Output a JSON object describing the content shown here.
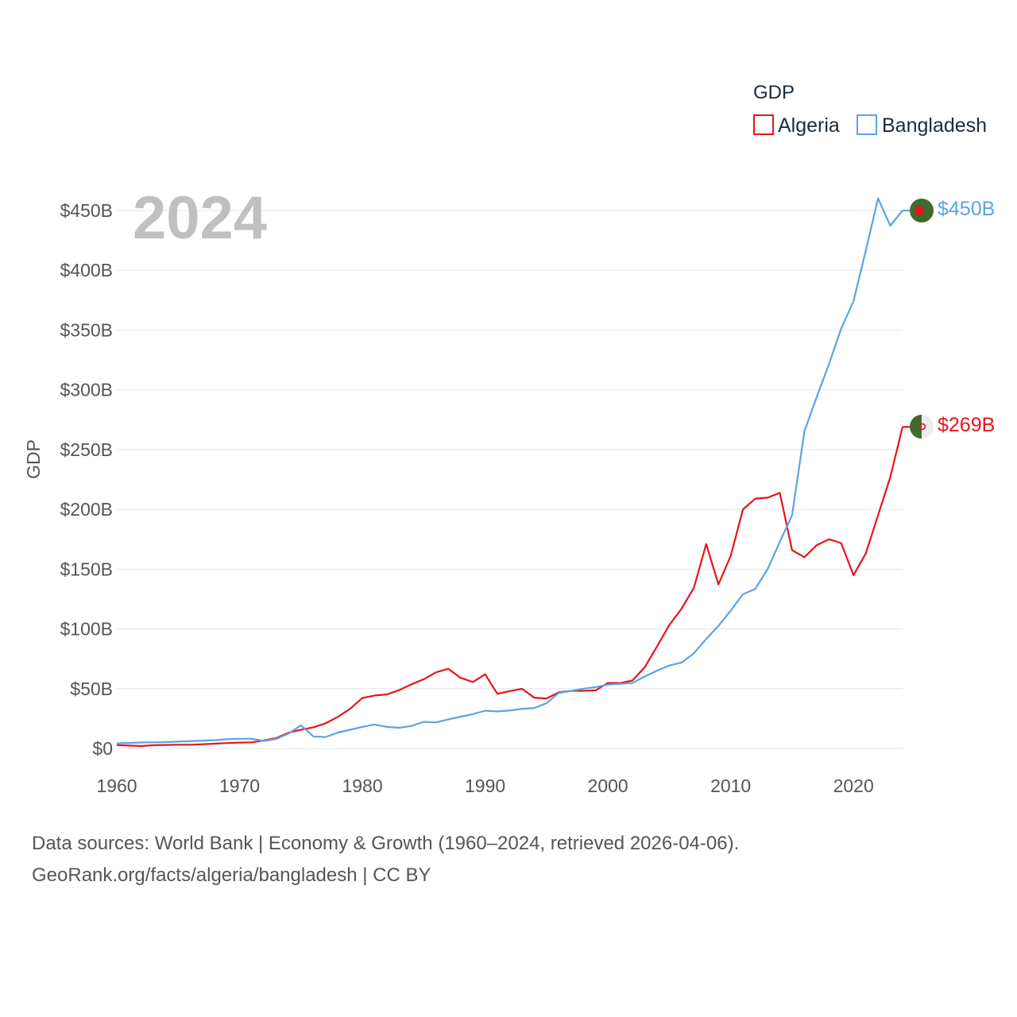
{
  "chart_data": {
    "type": "line",
    "year_label": "2024",
    "ylabel": "GDP",
    "ylim": [
      0,
      450
    ],
    "xlim": [
      1960,
      2024
    ],
    "y_ticks": [
      {
        "value": 0,
        "label": "$0"
      },
      {
        "value": 50,
        "label": "$50B"
      },
      {
        "value": 100,
        "label": "$100B"
      },
      {
        "value": 150,
        "label": "$150B"
      },
      {
        "value": 200,
        "label": "$200B"
      },
      {
        "value": 250,
        "label": "$250B"
      },
      {
        "value": 300,
        "label": "$300B"
      },
      {
        "value": 350,
        "label": "$350B"
      },
      {
        "value": 400,
        "label": "$400B"
      },
      {
        "value": 450,
        "label": "$450B"
      }
    ],
    "x_ticks": [
      {
        "value": 1960,
        "label": "1960"
      },
      {
        "value": 1970,
        "label": "1970"
      },
      {
        "value": 1980,
        "label": "1980"
      },
      {
        "value": 1990,
        "label": "1990"
      },
      {
        "value": 2000,
        "label": "2000"
      },
      {
        "value": 2010,
        "label": "2010"
      },
      {
        "value": 2020,
        "label": "2020"
      }
    ],
    "legend": {
      "title": "GDP",
      "position": "top-right"
    },
    "x_start": 1960,
    "series": [
      {
        "name": "Algeria",
        "color": "#e8141c",
        "end_label": "$269B",
        "values": [
          2.7,
          2.4,
          2.0,
          2.7,
          2.9,
          3.1,
          3.1,
          3.5,
          4.0,
          4.5,
          4.9,
          5.1,
          6.8,
          8.7,
          13.2,
          15.6,
          17.7,
          21.0,
          26.4,
          33.2,
          42.3,
          44.3,
          45.2,
          48.8,
          53.7,
          57.9,
          63.7,
          66.7,
          59.1,
          55.6,
          62.0,
          45.7,
          48.0,
          49.9,
          42.5,
          41.8,
          46.9,
          48.2,
          48.2,
          48.6,
          54.8,
          54.7,
          56.8,
          67.9,
          85.3,
          103.2,
          117.0,
          134.3,
          171.0,
          137.2,
          161.2,
          200.0,
          209.0,
          209.8,
          213.8,
          165.9,
          160.0,
          170.0,
          175.0,
          171.8,
          145.0,
          163.0,
          195.0,
          227.0,
          269.0
        ]
      },
      {
        "name": "Bangladesh",
        "color": "#5aa4e6",
        "end_label": "$450B",
        "values": [
          4.3,
          4.6,
          5.0,
          5.1,
          5.3,
          5.7,
          6.1,
          6.6,
          6.9,
          7.7,
          8.1,
          8.1,
          6.3,
          8.0,
          12.5,
          19.4,
          10.1,
          9.6,
          13.3,
          15.6,
          18.1,
          20.1,
          18.0,
          17.3,
          18.8,
          22.3,
          21.8,
          24.3,
          26.6,
          28.7,
          31.6,
          31.0,
          31.7,
          33.2,
          33.8,
          37.9,
          46.4,
          48.2,
          50.0,
          51.3,
          53.4,
          54.1,
          54.7,
          60.2,
          65.1,
          69.4,
          71.8,
          79.6,
          91.6,
          102.5,
          115.3,
          129.0,
          133.5,
          149.9,
          172.9,
          195.1,
          265.2,
          293.8,
          321.4,
          351.2,
          374.0,
          416.3,
          460.2,
          437.4,
          450.0
        ]
      }
    ]
  },
  "source": {
    "line1": "Data sources: World Bank | Economy & Growth (1960–2024, retrieved 2026-04-06).",
    "line2": "GeoRank.org/facts/algeria/bangladesh | CC BY"
  }
}
